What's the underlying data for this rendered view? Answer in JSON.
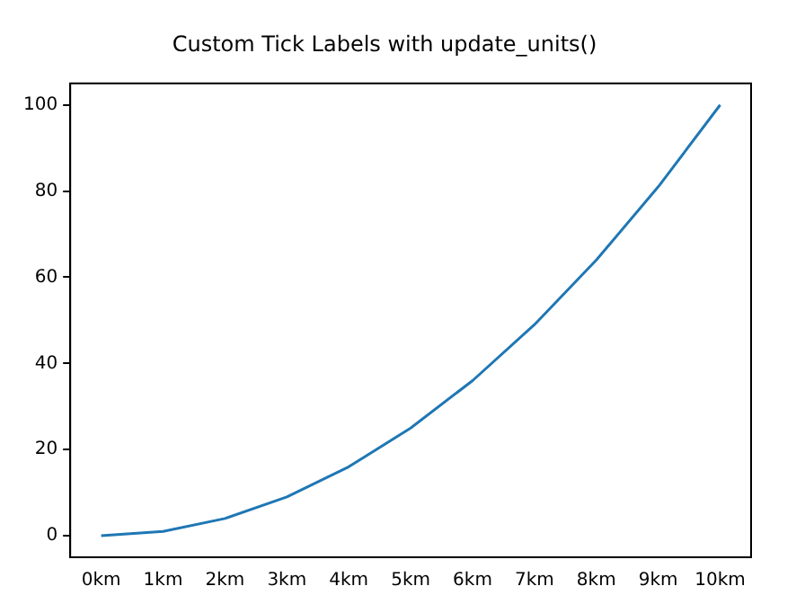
{
  "chart_data": {
    "type": "line",
    "title": "Custom Tick Labels with update_units()",
    "categories": [
      "0km",
      "1km",
      "2km",
      "3km",
      "4km",
      "5km",
      "6km",
      "7km",
      "8km",
      "9km",
      "10km"
    ],
    "series": [
      {
        "color": "#1f77b4",
        "values": [
          0,
          1,
          4,
          9,
          16,
          25,
          36,
          49,
          64,
          81,
          100
        ]
      }
    ],
    "ylim": [
      -5,
      105
    ],
    "yticks": [
      0,
      20,
      40,
      60,
      80,
      100
    ],
    "grid": false,
    "legend": false,
    "marker": "none"
  }
}
